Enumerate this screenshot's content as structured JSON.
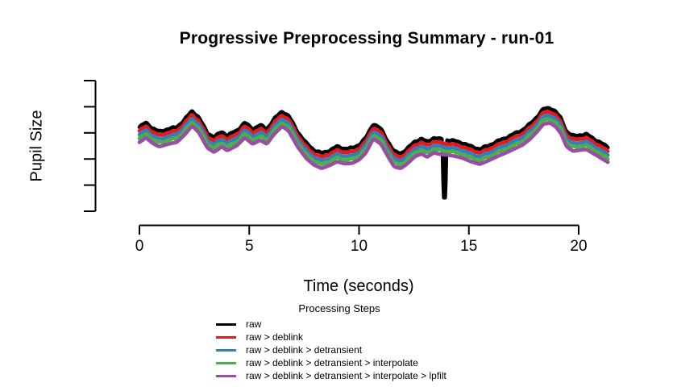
{
  "title": "Progressive Preprocessing Summary - run-01",
  "axes": {
    "x_label": "Time (seconds)",
    "y_label": "Pupil Size",
    "x_tick_labels": [
      "0",
      "5",
      "10",
      "15",
      "20"
    ],
    "y_tick_labels": []
  },
  "legend": {
    "title": "Processing Steps",
    "entries": [
      {
        "key": "raw",
        "label": "raw",
        "color": "#000000"
      },
      {
        "key": "deblink",
        "label": "raw > deblink",
        "color": "#E41A1C"
      },
      {
        "key": "detransient",
        "label": "raw > deblink > detransient",
        "color": "#377EB8"
      },
      {
        "key": "interpolate",
        "label": "raw > deblink > detransient > interpolate",
        "color": "#4DAF4A"
      },
      {
        "key": "lpfilt",
        "label": "raw > deblink > detransient > interpolate > lpfilt",
        "color": "#984EA3"
      }
    ]
  },
  "chart_data": {
    "type": "line",
    "title": "Progressive Preprocessing Summary - run-01",
    "xlabel": "Time (seconds)",
    "ylabel": "Pupil Size",
    "legend_title": "Processing Steps",
    "legend_position": "bottom",
    "grid": false,
    "xlim": [
      0,
      21.35
    ],
    "ylim": [
      0,
      5
    ],
    "x_ticks": [
      0,
      5,
      10,
      15,
      20
    ],
    "y_tick_count": 6,
    "x": [
      0.0,
      0.3,
      0.6,
      0.9,
      1.3,
      1.7,
      2.05,
      2.4,
      2.7,
      3.1,
      3.4,
      3.75,
      4.0,
      4.45,
      4.8,
      5.15,
      5.5,
      5.8,
      6.15,
      6.5,
      6.8,
      7.2,
      7.6,
      7.95,
      8.3,
      8.7,
      9.0,
      9.35,
      9.7,
      10.0,
      10.3,
      10.65,
      11.0,
      11.3,
      11.6,
      11.9,
      12.2,
      12.55,
      12.85,
      13.1,
      13.4,
      13.7,
      13.95,
      14.3,
      14.7,
      15.1,
      15.5,
      15.9,
      16.3,
      16.7,
      17.1,
      17.45,
      17.8,
      18.1,
      18.4,
      18.7,
      18.95,
      19.2,
      19.45,
      19.75,
      20.05,
      20.35,
      20.65,
      20.95,
      21.2,
      21.35
    ],
    "base_values": [
      3.22,
      3.4,
      3.18,
      3.05,
      3.15,
      3.22,
      3.5,
      3.85,
      3.6,
      3.0,
      2.84,
      3.05,
      2.9,
      3.1,
      3.4,
      3.15,
      3.3,
      3.15,
      3.55,
      3.83,
      3.65,
      3.05,
      2.6,
      2.35,
      2.22,
      2.35,
      2.48,
      2.4,
      2.42,
      2.55,
      2.8,
      3.36,
      3.15,
      2.7,
      2.28,
      2.22,
      2.4,
      2.68,
      2.78,
      2.65,
      2.82,
      2.76,
      2.74,
      2.7,
      2.62,
      2.48,
      2.38,
      2.52,
      2.68,
      2.82,
      2.98,
      3.12,
      3.35,
      3.62,
      3.92,
      3.96,
      3.82,
      3.55,
      3.05,
      2.88,
      2.92,
      2.95,
      2.8,
      2.65,
      2.52,
      2.45
    ],
    "series": [
      {
        "key": "raw",
        "name": "raw",
        "color": "#000000",
        "offset_units": 0.0,
        "has_blink_spike": true,
        "smoothed": false
      },
      {
        "key": "deblink",
        "name": "raw > deblink",
        "color": "#E41A1C",
        "offset_units": 0.145,
        "has_blink_spike": false,
        "smoothed": false
      },
      {
        "key": "detransient",
        "name": "raw > deblink > detransient",
        "color": "#377EB8",
        "offset_units": 0.29,
        "has_blink_spike": false,
        "smoothed": false
      },
      {
        "key": "interpolate",
        "name": "raw > deblink > detransient > interpolate",
        "color": "#4DAF4A",
        "offset_units": 0.435,
        "has_blink_spike": false,
        "smoothed": false
      },
      {
        "key": "lpfilt",
        "name": "raw > deblink > detransient > interpolate > lpfilt",
        "color": "#984EA3",
        "offset_units": 0.58,
        "has_blink_spike": false,
        "smoothed": true
      }
    ],
    "blink_spike": {
      "series": "raw",
      "t_center": 13.89,
      "min_value": 0.52,
      "half_width_seconds": 0.1
    }
  }
}
